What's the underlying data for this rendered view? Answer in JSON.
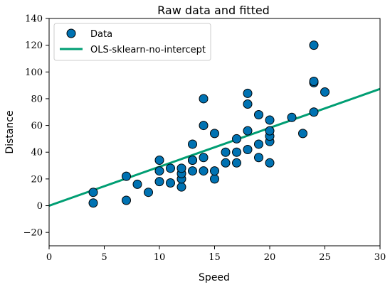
{
  "chart_data": {
    "type": "scatter",
    "title": "Raw data and fitted",
    "xlabel": "Speed",
    "ylabel": "Distance",
    "xlim": [
      0,
      30
    ],
    "ylim": [
      -30,
      140
    ],
    "xticks": [
      0,
      5,
      10,
      15,
      20,
      25,
      30
    ],
    "yticks": [
      -20,
      0,
      20,
      40,
      60,
      80,
      100,
      120,
      140
    ],
    "grid": false,
    "legend_position": "top-left",
    "series": [
      {
        "name": "Data",
        "kind": "scatter",
        "color": "#0072b2",
        "points": [
          [
            4,
            2
          ],
          [
            4,
            10
          ],
          [
            7,
            4
          ],
          [
            7,
            22
          ],
          [
            8,
            16
          ],
          [
            9,
            10
          ],
          [
            10,
            18
          ],
          [
            10,
            26
          ],
          [
            10,
            34
          ],
          [
            11,
            17
          ],
          [
            11,
            28
          ],
          [
            12,
            14
          ],
          [
            12,
            20
          ],
          [
            12,
            24
          ],
          [
            12,
            28
          ],
          [
            13,
            26
          ],
          [
            13,
            34
          ],
          [
            13,
            34
          ],
          [
            13,
            46
          ],
          [
            14,
            26
          ],
          [
            14,
            36
          ],
          [
            14,
            60
          ],
          [
            14,
            80
          ],
          [
            15,
            20
          ],
          [
            15,
            26
          ],
          [
            15,
            54
          ],
          [
            16,
            32
          ],
          [
            16,
            40
          ],
          [
            17,
            32
          ],
          [
            17,
            40
          ],
          [
            17,
            50
          ],
          [
            18,
            42
          ],
          [
            18,
            56
          ],
          [
            18,
            76
          ],
          [
            18,
            84
          ],
          [
            19,
            36
          ],
          [
            19,
            46
          ],
          [
            19,
            68
          ],
          [
            20,
            32
          ],
          [
            20,
            48
          ],
          [
            20,
            52
          ],
          [
            20,
            56
          ],
          [
            20,
            64
          ],
          [
            22,
            66
          ],
          [
            23,
            54
          ],
          [
            24,
            70
          ],
          [
            24,
            92
          ],
          [
            24,
            93
          ],
          [
            24,
            120
          ],
          [
            25,
            85
          ]
        ]
      },
      {
        "name": "OLS-sklearn-no-intercept",
        "kind": "line",
        "color": "#009e73",
        "slope": 2.91,
        "points": [
          [
            0,
            0
          ],
          [
            30,
            87.3
          ]
        ]
      }
    ]
  }
}
